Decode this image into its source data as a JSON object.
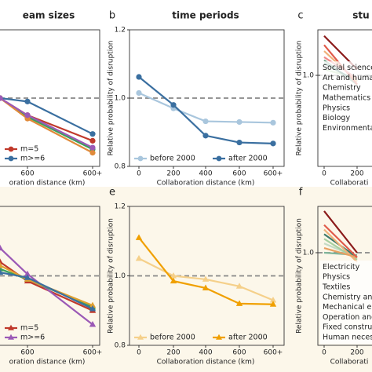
{
  "chart_data": [
    {
      "type": "line",
      "title": "eam sizes",
      "xlabel": "oration distance (km)",
      "marker": "circle",
      "categories": [
        null,
        "600",
        "600+"
      ],
      "ylim": [
        0.8,
        1.2
      ],
      "yticks": [],
      "hline": 1.0,
      "legend_loc": "lower left",
      "series": [
        {
          "name": "m=5",
          "color": "#c0392b",
          "values": [
            1.0,
            0.95,
            0.875
          ]
        },
        {
          "name": "m>=6",
          "color": "#3a6fa0",
          "values": [
            1.0,
            0.99,
            0.895
          ]
        },
        {
          "color": "#3aa05a",
          "values": [
            1.0,
            0.945,
            0.85
          ]
        },
        {
          "color": "#e08a3a",
          "values": [
            1.0,
            0.94,
            0.84
          ]
        },
        {
          "color": "#9b59b6",
          "values": [
            1.0,
            0.95,
            0.855
          ]
        }
      ]
    },
    {
      "type": "line",
      "panel_label": "b",
      "title": "time periods",
      "xlabel": "Collaboration distance (km)",
      "ylabel": "Relative probability of disruption",
      "marker": "circle",
      "categories": [
        "0",
        "200",
        "400",
        "600",
        "600+"
      ],
      "ylim": [
        0.8,
        1.2
      ],
      "yticks": [
        0.8,
        {
          "value": 1.0,
          "label": "1.0"
        },
        1.2
      ],
      "hline": 1.0,
      "legend_loc": "lower left",
      "legend_ncol": 2,
      "series": [
        {
          "name": "before 2000",
          "color": "#a9c6dd",
          "values": [
            1.015,
            0.97,
            0.932,
            0.93,
            0.928
          ]
        },
        {
          "name": "after 2000",
          "color": "#3a6fa0",
          "values": [
            1.062,
            0.98,
            0.89,
            0.87,
            0.867
          ]
        }
      ]
    },
    {
      "type": "line",
      "panel_label": "c",
      "title": "stu",
      "xlabel": "Collaborati",
      "ylabel": "Relative probability of disruption",
      "marker": "none",
      "categories": [
        "0",
        "200"
      ],
      "ylim": [
        0.7,
        1.15
      ],
      "yticks": [
        {
          "value": 1.0,
          "label": "1.0"
        }
      ],
      "hline": 1.0,
      "legend_loc": "center left",
      "legend_text_colored": true,
      "series": [
        {
          "name": "Social sciences",
          "color": "#b5d9a8",
          "values": [
            1.02,
            0.99
          ]
        },
        {
          "name": "Art and human",
          "color": "#7fa88e",
          "values": [
            1.05,
            0.97
          ]
        },
        {
          "name": "Chemistry",
          "color": "#3d7a6a",
          "values": [
            1.04,
            0.98
          ]
        },
        {
          "name": "Mathematics",
          "color": "#f0b27a",
          "values": [
            1.08,
            0.98
          ]
        },
        {
          "name": "Physics",
          "color": "#e05a4a",
          "values": [
            1.1,
            0.97
          ]
        },
        {
          "name": "Biology",
          "color": "#f08a8a",
          "values": [
            1.06,
            0.99
          ]
        },
        {
          "name": "Environmental",
          "color": "#8b1a1a",
          "values": [
            1.13,
            1.02
          ]
        }
      ]
    },
    {
      "type": "line",
      "xlabel": "oration distance (km)",
      "marker": "triangle",
      "categories": [
        null,
        "600",
        "600+"
      ],
      "ylim": [
        0.8,
        1.2
      ],
      "yticks": [],
      "hline": 1.0,
      "legend_loc": "lower left",
      "series": [
        {
          "name": "m=5",
          "color": "#c0392b",
          "values": [
            1.04,
            0.985,
            0.9
          ]
        },
        {
          "name": "m>=6",
          "color": "#9b59b6",
          "values": [
            1.08,
            1.005,
            0.86
          ]
        },
        {
          "color": "#3aa05a",
          "values": [
            1.02,
            0.99,
            0.91
          ]
        },
        {
          "color": "#e0a030",
          "values": [
            1.03,
            0.99,
            0.915
          ]
        },
        {
          "color": "#3a6fa0",
          "values": [
            1.01,
            0.995,
            0.905
          ]
        }
      ]
    },
    {
      "type": "line",
      "panel_label": "e",
      "xlabel": "Collaboration distance (km)",
      "ylabel": "Relative probability of disruption",
      "marker": "triangle",
      "categories": [
        "0",
        "200",
        "400",
        "600",
        "600+"
      ],
      "ylim": [
        0.8,
        1.2
      ],
      "yticks": [
        0.8,
        {
          "value": 1.0,
          "label": "1.0"
        },
        1.2
      ],
      "hline": 1.0,
      "legend_loc": "lower left",
      "legend_ncol": 2,
      "series": [
        {
          "name": "before 2000",
          "color": "#f5d08a",
          "values": [
            1.05,
            1.0,
            0.99,
            0.97,
            0.93
          ]
        },
        {
          "name": "after 2000",
          "color": "#f0a000",
          "values": [
            1.11,
            0.985,
            0.965,
            0.92,
            0.918
          ]
        }
      ]
    },
    {
      "type": "line",
      "panel_label": "f",
      "xlabel": "Collaborati",
      "ylabel": "Relative probability of disruption",
      "marker": "none",
      "categories": [
        "0",
        "200"
      ],
      "ylim": [
        0.8,
        1.1
      ],
      "yticks": [
        {
          "value": 1.0,
          "label": "1.0"
        }
      ],
      "hline": 1.0,
      "legend_loc": "lower left",
      "legend_text_colored": true,
      "series": [
        {
          "name": "Electricity",
          "color": "#c5dbc5",
          "values": [
            1.02,
            0.99
          ]
        },
        {
          "name": "Physics",
          "color": "#a8d0a0",
          "values": [
            1.03,
            0.985
          ]
        },
        {
          "name": "Textiles",
          "color": "#7fb59a",
          "values": [
            1.0,
            0.995
          ]
        },
        {
          "name": "Chemistry and",
          "color": "#3d7a6a",
          "values": [
            1.04,
            0.99
          ]
        },
        {
          "name": "Mechanical eng",
          "color": "#f0b27a",
          "values": [
            1.05,
            0.98
          ]
        },
        {
          "name": "Operation and",
          "color": "#e8a060",
          "values": [
            1.01,
            0.99
          ]
        },
        {
          "name": "Fixed construct",
          "color": "#e05a4a",
          "values": [
            1.06,
            0.99
          ]
        },
        {
          "name": "Human necessi",
          "color": "#8b1a1a",
          "values": [
            1.09,
            1.0
          ]
        }
      ]
    }
  ]
}
